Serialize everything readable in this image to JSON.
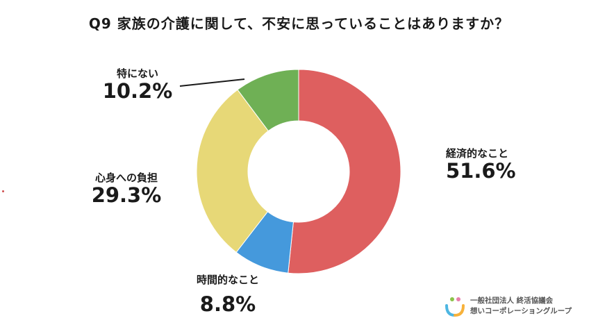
{
  "title": "Q9 家族の介護に関して、不安に思っていることはありますか？",
  "chart_data": {
    "type": "pie",
    "donut": true,
    "start_angle_deg": 0,
    "direction": "clockwise",
    "slices": [
      {
        "label": "経済的なこと",
        "value": 51.6,
        "display": "51.6%",
        "color": "#de5f5f"
      },
      {
        "label": "時間的なこと",
        "value": 8.8,
        "display": "8.8%",
        "color": "#4599dc"
      },
      {
        "label": "心身への負担",
        "value": 29.3,
        "display": "29.3%",
        "color": "#e7d877"
      },
      {
        "label": "特にない",
        "value": 10.2,
        "display": "10.2%",
        "color": "#6fb055"
      }
    ]
  },
  "logo": {
    "line1": "一般社団法人 終活協議会",
    "line2": "想いコーポレーショングループ",
    "colors": [
      "#8bc34a",
      "#e77fa9",
      "#4db6e2",
      "#f7b23b"
    ]
  }
}
